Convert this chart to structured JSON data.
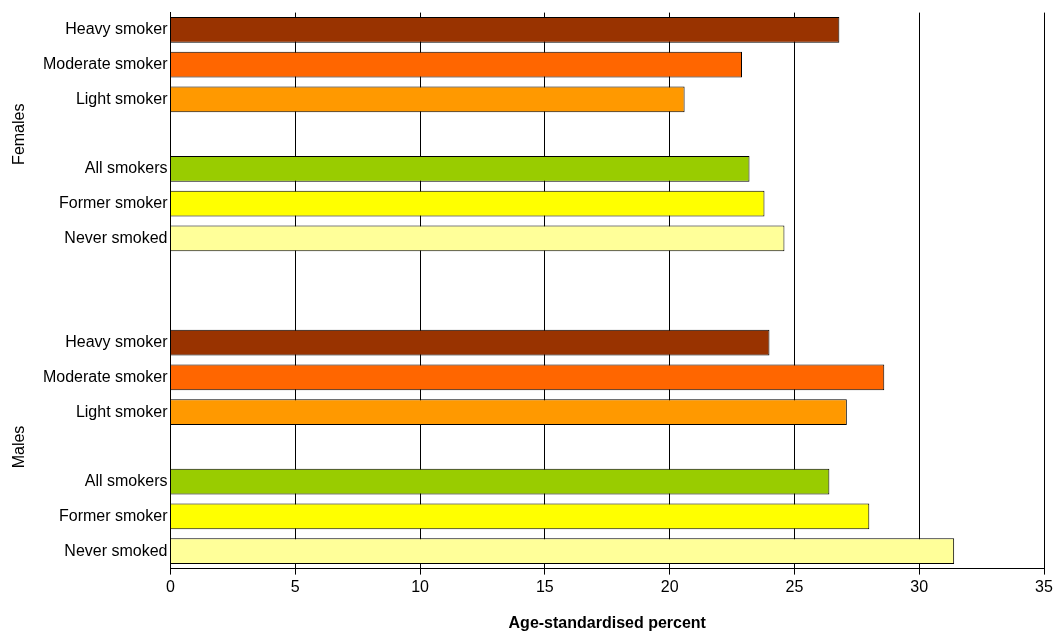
{
  "chart_data": {
    "type": "bar",
    "orientation": "horizontal",
    "xlabel": "Age-standardised percent",
    "categories": [
      "Heavy smoker",
      "Moderate smoker",
      "Light smoker",
      null,
      "All smokers",
      "Former smoker",
      "Never smoked",
      null,
      null,
      "Heavy smoker",
      "Moderate smoker",
      "Light smoker",
      null,
      "All smokers",
      "Former smoker",
      "Never smoked"
    ],
    "values": [
      26.8,
      22.9,
      20.6,
      null,
      23.2,
      23.8,
      24.6,
      null,
      null,
      24.0,
      28.6,
      27.1,
      null,
      26.4,
      28.0,
      31.4
    ],
    "colors": [
      "#993300",
      "#ff6600",
      "#ff9900",
      "#ffffff",
      "#99cc00",
      "#ffff00",
      "#ffff99",
      "#ffffff",
      "#ffffff",
      "#993300",
      "#ff6600",
      "#ff9900",
      "#ffffff",
      "#99cc00",
      "#ffff00",
      "#ffff99"
    ],
    "xlim": [
      0,
      35
    ],
    "xticks": [
      0,
      5,
      10,
      15,
      20,
      25,
      30,
      35
    ],
    "grid": "x",
    "legend": false,
    "annotations": [
      "Females",
      "Males"
    ]
  }
}
